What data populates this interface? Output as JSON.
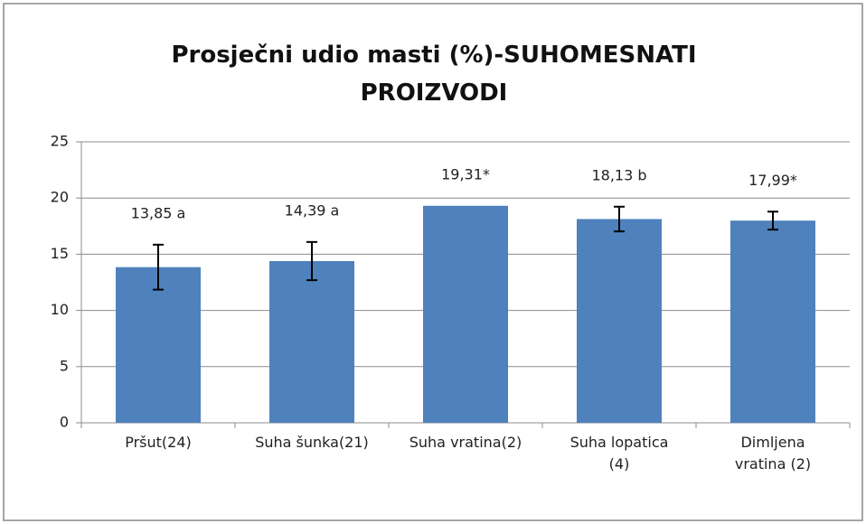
{
  "chart_data": {
    "type": "bar",
    "title": "Prosječni udio masti (%)-SUHOMESNATI PROIZVODI",
    "categories": [
      "Pršut(24)",
      "Suha šunka(21)",
      "Suha vratina(2)",
      "Suha lopatica\n(4)",
      "Dimljena\nvratina (2)"
    ],
    "values": [
      13.85,
      14.39,
      19.31,
      18.13,
      17.99
    ],
    "value_labels": [
      "13,85 a",
      "14,39 a",
      "19,31*",
      "18,13 b",
      "17,99*"
    ],
    "errors": [
      2.0,
      1.7,
      null,
      1.1,
      0.8
    ],
    "color": "#4f81bd",
    "ylim": [
      0,
      25
    ],
    "yticks": [
      0,
      5,
      10,
      15,
      20,
      25
    ],
    "grid": true
  }
}
